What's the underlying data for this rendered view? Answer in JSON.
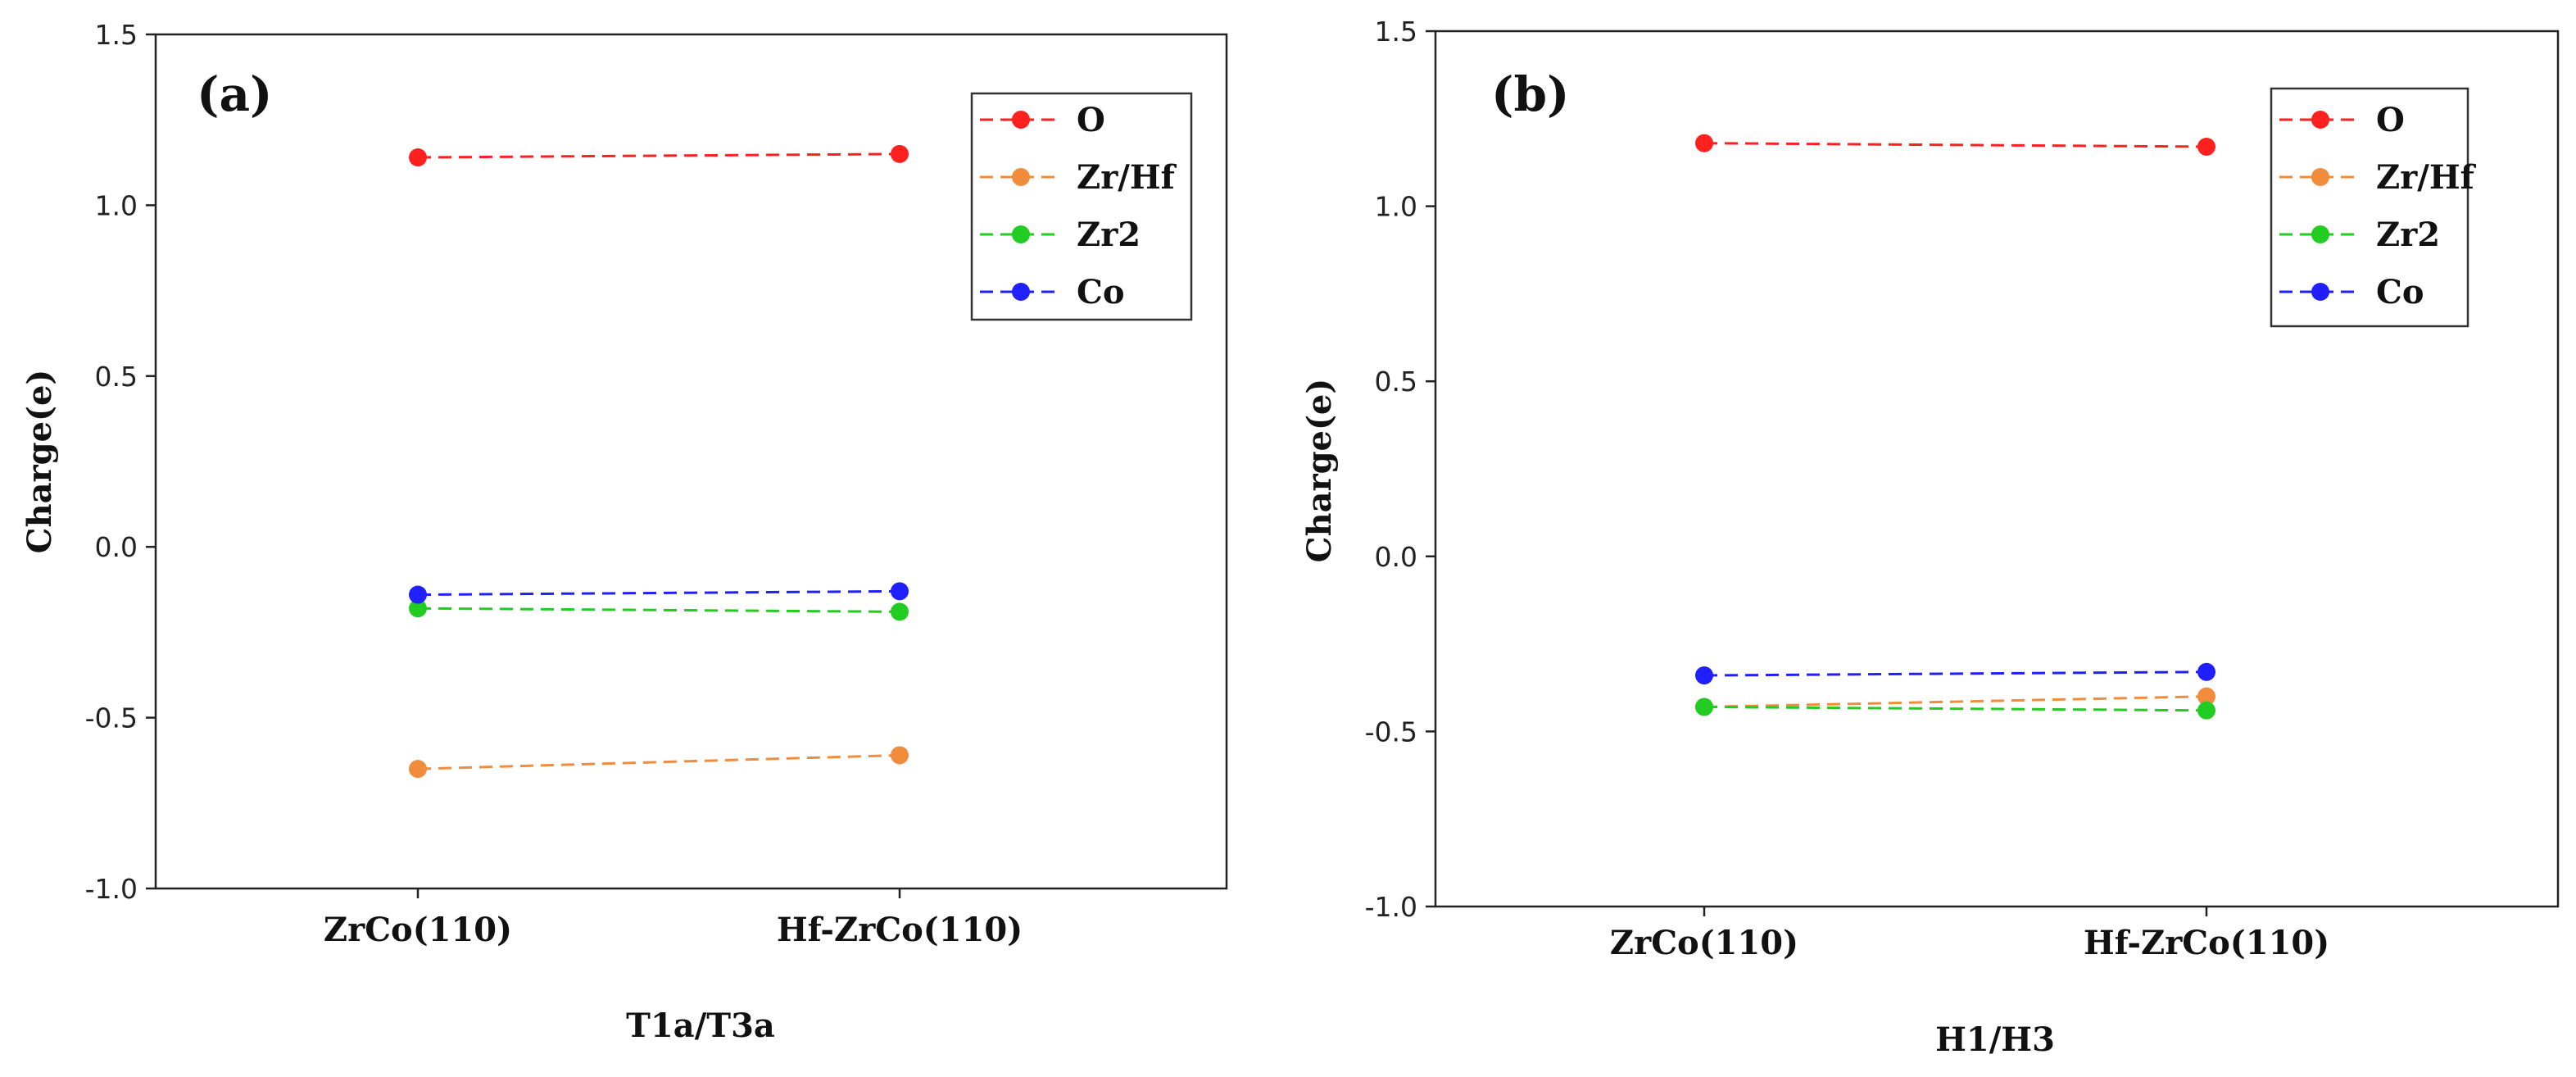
{
  "chart_data": [
    {
      "type": "line",
      "panel_label": "(a)",
      "title": "",
      "xlabel": "T1a/T3a",
      "ylabel": "Charge(e)",
      "categories": [
        "ZrCo(110)",
        "Hf-ZrCo(110)"
      ],
      "ylim": [
        -1.0,
        1.5
      ],
      "yticks": [
        "1.5",
        "1.0",
        "0.5",
        "0.0",
        "-0.5",
        "-1.0"
      ],
      "legend_position": "top-right",
      "series": [
        {
          "name": "O",
          "color": "#ff2020",
          "values": [
            1.14,
            1.15
          ]
        },
        {
          "name": "Zr/Hf",
          "color": "#f08c3c",
          "values": [
            -0.65,
            -0.61
          ]
        },
        {
          "name": "Zr2",
          "color": "#22cc22",
          "values": [
            -0.18,
            -0.19
          ]
        },
        {
          "name": "Co",
          "color": "#2020ff",
          "values": [
            -0.14,
            -0.13
          ]
        }
      ]
    },
    {
      "type": "line",
      "panel_label": "(b)",
      "title": "",
      "xlabel": "H1/H3",
      "ylabel": "Charge(e)",
      "categories": [
        "ZrCo(110)",
        "Hf-ZrCo(110)"
      ],
      "ylim": [
        -1.0,
        1.5
      ],
      "yticks": [
        "1.5",
        "1.0",
        "0.5",
        "0.0",
        "-0.5",
        "-1.0"
      ],
      "legend_position": "top-right",
      "series": [
        {
          "name": "O",
          "color": "#ff2020",
          "values": [
            1.18,
            1.17
          ]
        },
        {
          "name": "Zr/Hf",
          "color": "#f08c3c",
          "values": [
            -0.43,
            -0.4
          ]
        },
        {
          "name": "Zr2",
          "color": "#22cc22",
          "values": [
            -0.43,
            -0.44
          ]
        },
        {
          "name": "Co",
          "color": "#2020ff",
          "values": [
            -0.34,
            -0.33
          ]
        }
      ]
    }
  ]
}
